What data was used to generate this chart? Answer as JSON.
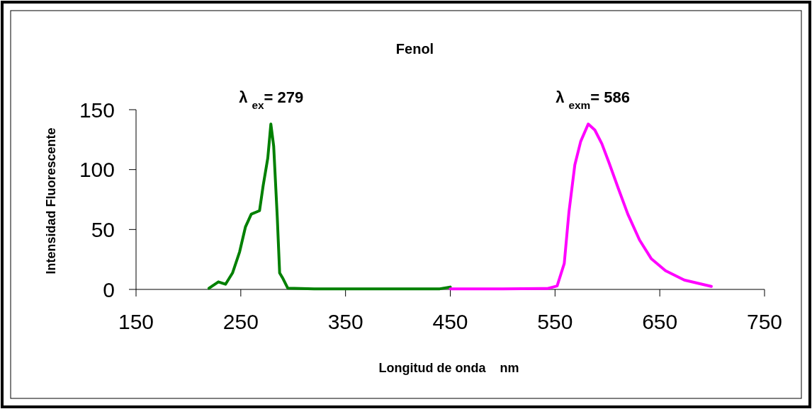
{
  "chart_data": {
    "type": "line",
    "title": "Fenol",
    "xlabel": "Longitud de onda    nm",
    "ylabel": "Intensidad Fluorescente",
    "annotations": [
      {
        "text": "λ $_{ex}$= 279",
        "x": 279,
        "y": 137
      },
      {
        "text": "λ $_{exm}$= 586",
        "x": 586,
        "y": 137
      }
    ],
    "xlim": [
      150,
      750
    ],
    "xticks": [
      150,
      250,
      350,
      450,
      550,
      650,
      750
    ],
    "ylim": [
      0,
      150
    ],
    "yticks": [
      0,
      50,
      100,
      150
    ],
    "grid": false,
    "marker": "none",
    "line_style": "solid",
    "series": [
      {
        "color": "#008000",
        "x": [
          219.6,
          228.6,
          235.4,
          242.1,
          248.9,
          254.4,
          260,
          267.9,
          271.3,
          275.8,
          278.7,
          281.4,
          284.8,
          287.1,
          290.4,
          294.9,
          320,
          360,
          400,
          440,
          450
        ],
        "values": [
          1,
          6.3,
          4.3,
          13.7,
          31.4,
          52,
          62.8,
          65.7,
          86.3,
          109.8,
          138,
          119.6,
          60.8,
          13.7,
          8.8,
          1,
          0.5,
          0.5,
          0.5,
          0.5,
          2
        ]
      },
      {
        "color": "#ff00ff",
        "x": [
          450,
          500,
          543,
          552,
          558.8,
          563.3,
          568.9,
          574.5,
          581.7,
          588,
          594.7,
          601.5,
          610.4,
          619.5,
          630.7,
          642,
          655.4,
          673.4,
          699.2
        ],
        "values": [
          0.5,
          0.5,
          0.8,
          2.9,
          21.6,
          64.7,
          104,
          123.5,
          138,
          133,
          121.6,
          105.9,
          84.3,
          62.8,
          41.2,
          25.5,
          15.7,
          7.8,
          2.5
        ]
      }
    ]
  }
}
